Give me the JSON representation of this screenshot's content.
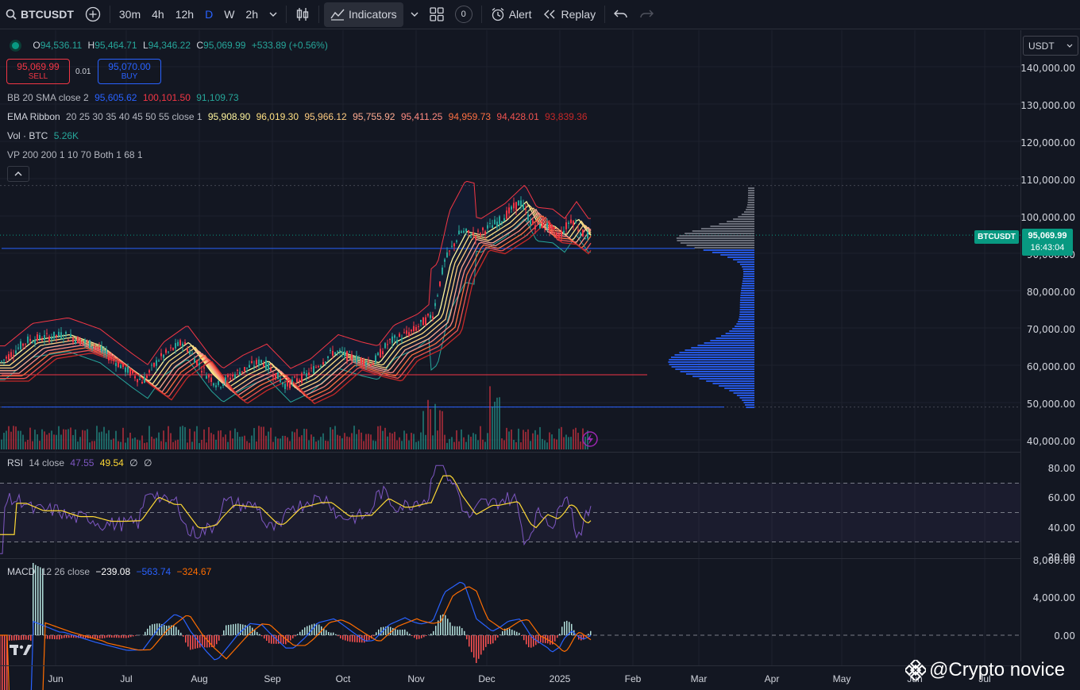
{
  "toolbar": {
    "symbol": "BTCUSDT",
    "intervals": [
      "30m",
      "4h",
      "12h",
      "D",
      "W",
      "2h"
    ],
    "active_interval": "D",
    "indicators_label": "Indicators",
    "templates_count": "0",
    "alert_label": "Alert",
    "replay_label": "Replay"
  },
  "legend": {
    "ohlc": {
      "o_label": "O",
      "o": "94,536.11",
      "h_label": "H",
      "h": "95,464.71",
      "l_label": "L",
      "l": "94,346.22",
      "c_label": "C",
      "c": "95,069.99",
      "change": "+533.89 (+0.56%)"
    },
    "sell_price": "95,069.99",
    "sell_label": "SELL",
    "spread": "0.01",
    "buy_price": "95,070.00",
    "buy_label": "BUY",
    "bb": {
      "label": "BB 20 SMA close 2",
      "basis": "95,605.62",
      "upper": "100,101.50",
      "lower": "91,109.73"
    },
    "ema": {
      "label": "EMA Ribbon",
      "params": "20 25 30 35 40 45 50 55 close 1",
      "values": [
        "95,908.90",
        "96,019.30",
        "95,966.12",
        "95,755.92",
        "95,411.25",
        "94,959.73",
        "94,428.01",
        "93,839.36"
      ]
    },
    "vol": {
      "label": "Vol · BTC",
      "value": "5.26K"
    },
    "vp": {
      "label": "VP 200 200 1 10 70 Both 1 68 1"
    }
  },
  "rsi_legend": {
    "label": "RSI",
    "params": "14 close",
    "rsi": "47.55",
    "ma": "49.54",
    "e1": "∅",
    "e2": "∅"
  },
  "macd_legend": {
    "label": "MACD",
    "params": "12 26 close",
    "hist": "−239.08",
    "macd": "−563.74",
    "signal": "−324.67"
  },
  "currency": "USDT",
  "price_axis": [
    "140,000.00",
    "130,000.00",
    "120,000.00",
    "110,000.00",
    "100,000.00",
    "90,000.00",
    "80,000.00",
    "70,000.00",
    "60,000.00",
    "50,000.00",
    "40,000.00"
  ],
  "rsi_axis": [
    "80.00",
    "60.00",
    "40.00",
    "20.00"
  ],
  "macd_axis": [
    "8,000.00",
    "4,000.00",
    "0.00"
  ],
  "time_axis": [
    "Jun",
    "Jul",
    "Aug",
    "Sep",
    "Oct",
    "Nov",
    "Dec",
    "2025",
    "Feb",
    "Mar",
    "Apr",
    "May",
    "Jun",
    "Jul"
  ],
  "last_price": {
    "symbol": "BTCUSDT",
    "price": "95,069.99",
    "countdown": "16:43:04"
  },
  "watermark": "@Crypto novice",
  "colors": {
    "up": "#26a69a",
    "down": "#f23645",
    "accent": "#2962ff",
    "background": "#131722"
  },
  "icons": [
    "search-icon",
    "plus-circle-icon",
    "chevron-down-icon",
    "candles-icon",
    "indicators-icon",
    "layout-grid-icon",
    "alert-clock-icon",
    "replay-icon",
    "undo-icon",
    "redo-icon",
    "lightning-icon",
    "tradingview-logo-icon",
    "binance-logo-icon"
  ]
}
